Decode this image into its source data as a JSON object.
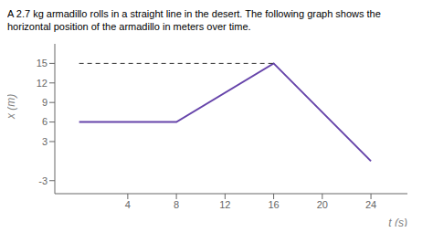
{
  "chart_data": {
    "type": "line",
    "title": "A 2.7 kg armadillo rolls in a straight line in the desert. The following graph shows the horizontal position of the armadillo in meters over time.",
    "x_label": "t (s)",
    "y_label": "x (m)",
    "series": [
      {
        "x": [
          0,
          8,
          16,
          24
        ],
        "values": [
          6,
          6,
          15,
          0
        ],
        "color": "#6644aa",
        "line_style": "solid"
      },
      {
        "x": [
          0,
          16
        ],
        "values": [
          15,
          15
        ],
        "color": "#333333",
        "line_style": "dashed"
      }
    ],
    "xlim": [
      -2,
      27
    ],
    "xticks": [
      4,
      8,
      12,
      16,
      20,
      24
    ],
    "ylim": [
      -5,
      18
    ],
    "yticks": [
      -3,
      3,
      6,
      9,
      12,
      15
    ],
    "grid": false
  }
}
